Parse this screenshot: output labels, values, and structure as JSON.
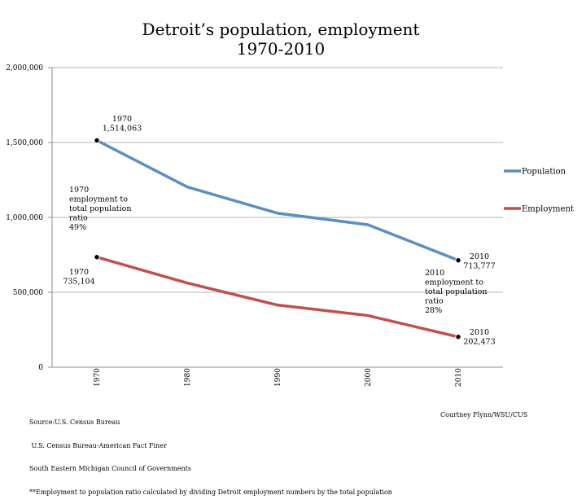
{
  "chart_data": {
    "type": "line",
    "title": "Detroit’s population, employment",
    "subtitle": "1970-2010",
    "categories": [
      "1970",
      "1980",
      "1990",
      "2000",
      "2010"
    ],
    "ylim": [
      0,
      2000000
    ],
    "yticks": [
      0,
      500000,
      1000000,
      1500000,
      2000000
    ],
    "ytick_labels": [
      "0",
      "500,000",
      "1,000,000",
      "1,500,000",
      "2,000,000"
    ],
    "grid": true,
    "legend_position": "right",
    "series": [
      {
        "name": "Population",
        "color": "#5b8ec1",
        "values": [
          1514063,
          1203339,
          1027974,
          951270,
          713777
        ]
      },
      {
        "name": "Employment",
        "color": "#c0504d",
        "values": [
          735104,
          562000,
          415000,
          345000,
          202473
        ]
      }
    ],
    "annotations": {
      "pop_1970": [
        "1970",
        "1,514,063"
      ],
      "ratio_1970": [
        "1970",
        "employment to",
        "total population",
        "ratio",
        "49%"
      ],
      "emp_1970": [
        "1970",
        "735,104"
      ],
      "pop_2010": [
        "2010",
        "713,777"
      ],
      "ratio_2010": [
        "2010",
        "employment to",
        "total population",
        "ratio",
        "28%"
      ],
      "emp_2010": [
        "2010",
        "202,473"
      ]
    }
  },
  "footer": {
    "source_lines": [
      "Source:U.S. Census Bureau",
      " U.S. Census Bureau-American Fact Finer",
      "South Eastern Michigan Council of Governments",
      "**Employment to population ratio calculated by dividing Detroit employment numbers by the total population"
    ],
    "credit": "Courtney Flynn/WSU/CUS"
  }
}
